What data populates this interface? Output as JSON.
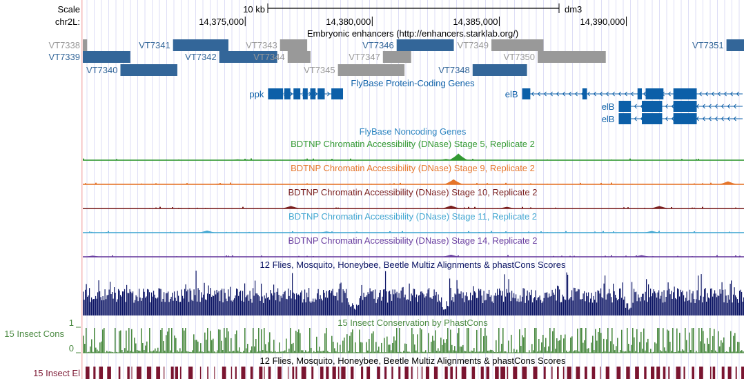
{
  "ruler": {
    "scale_label": "Scale",
    "scale_bar_label": "10 kb",
    "assembly": "dm3",
    "chrom_label": "chr2L:",
    "ticks": [
      {
        "label": "14,375,000",
        "value": 14375000
      },
      {
        "label": "14,380,000",
        "value": 14380000
      },
      {
        "label": "14,385,000",
        "value": 14385000
      },
      {
        "label": "14,390,000",
        "value": 14390000
      }
    ]
  },
  "view_range": [
    14368610,
    14394630
  ],
  "colors": {
    "enhancer_blue": "#336699",
    "enhancer_gray": "#999999",
    "gene": "#0C5FA8",
    "grid": "#c8c8f0",
    "scale_text": "#000000",
    "dnase_stage5": "#339933",
    "dnase_stage9": "#E5752A",
    "dnase_stage10": "#7A1F1F",
    "dnase_stage11": "#44A8D2",
    "dnase_stage14": "#6A3FA0",
    "multiz": "#0B1464",
    "phastcons": "#4C8B43",
    "elements": "#7A1530",
    "noncoding_title": "#2E86C1"
  },
  "tracks": {
    "enhancers_title": "Embryonic enhancers (http://enhancers.starklab.org/)",
    "protein_coding_title": "FlyBase Protein-Coding Genes",
    "noncoding_title": "FlyBase Noncoding Genes",
    "dnase_stage5_title": "BDTNP Chromatin Accessibility (DNase) Stage 5, Replicate 2",
    "dnase_stage9_title": "BDTNP Chromatin Accessibility (DNase) Stage 9, Replicate 2",
    "dnase_stage10_title": "BDTNP Chromatin Accessibility (DNase) Stage 10, Replicate 2",
    "dnase_stage11_title": "BDTNP Chromatin Accessibility (DNase) Stage 11, Replicate 2",
    "dnase_stage14_title": "BDTNP Chromatin Accessibility (DNase) Stage 14, Replicate 2",
    "multiz_title": "12 Flies, Mosquito, Honeybee, Beetle Multiz Alignments & phastCons Scores",
    "phastcons_title": "15 Insect Conservation by PhastCons",
    "phastcons_side_label": "15 Insect Cons",
    "phastcons_max": "1",
    "phastcons_min": "0",
    "elements_title": "12 Flies, Mosquito, Honeybee, Beetle Multiz Alignments & phastCons Scores",
    "elements_side_label": "15 Insect El"
  },
  "enhancers": [
    {
      "name": "VT7338",
      "start": 14368610,
      "end": 14368780,
      "row": 0,
      "color": "gray"
    },
    {
      "name": "VT7339",
      "start": 14368610,
      "end": 14370480,
      "row": 1,
      "color": "blue"
    },
    {
      "name": "VT7340",
      "start": 14370090,
      "end": 14372330,
      "row": 2,
      "color": "blue"
    },
    {
      "name": "VT7341",
      "start": 14372160,
      "end": 14374340,
      "row": 0,
      "color": "blue"
    },
    {
      "name": "VT7342",
      "start": 14373980,
      "end": 14376260,
      "row": 1,
      "color": "blue"
    },
    {
      "name": "VT7343",
      "start": 14376370,
      "end": 14377440,
      "row": 0,
      "color": "gray"
    },
    {
      "name": "VT7344",
      "start": 14376670,
      "end": 14377570,
      "row": 1,
      "color": "gray"
    },
    {
      "name": "VT7345",
      "start": 14378650,
      "end": 14381270,
      "row": 2,
      "color": "gray"
    },
    {
      "name": "VT7346",
      "start": 14380960,
      "end": 14383210,
      "row": 0,
      "color": "blue"
    },
    {
      "name": "VT7347",
      "start": 14380420,
      "end": 14381530,
      "row": 1,
      "color": "gray"
    },
    {
      "name": "VT7348",
      "start": 14383950,
      "end": 14386090,
      "row": 2,
      "color": "blue"
    },
    {
      "name": "VT7349",
      "start": 14384690,
      "end": 14386740,
      "row": 0,
      "color": "gray"
    },
    {
      "name": "VT7350",
      "start": 14386510,
      "end": 14389190,
      "row": 1,
      "color": "gray"
    },
    {
      "name": "VT7351",
      "start": 14393940,
      "end": 14394630,
      "row": 0,
      "color": "blue"
    }
  ],
  "genes": [
    {
      "name": "ppk",
      "start": 14375900,
      "end": 14378850,
      "row": 0,
      "label_side": "left",
      "exons": [
        [
          14375900,
          14376490
        ],
        [
          14376540,
          14376780
        ],
        [
          14376900,
          14377170
        ],
        [
          14377270,
          14377460
        ],
        [
          14377560,
          14377770
        ],
        [
          14377850,
          14378130
        ],
        [
          14378390,
          14378850
        ]
      ]
    },
    {
      "name": "elB",
      "start": 14385900,
      "end": 14394630,
      "row": 0,
      "label_side": "left",
      "exons": [
        [
          14385900,
          14386220
        ],
        [
          14388270,
          14388450
        ],
        [
          14390440,
          14390610
        ],
        [
          14390760,
          14391460
        ],
        [
          14391850,
          14392770
        ]
      ]
    },
    {
      "name": "elB",
      "start": 14389700,
      "end": 14394630,
      "row": 1,
      "label_side": "left",
      "exons": [
        [
          14389700,
          14390180
        ],
        [
          14390610,
          14391410
        ],
        [
          14391850,
          14392770
        ]
      ]
    },
    {
      "name": "elB",
      "start": 14389700,
      "end": 14394630,
      "row": 2,
      "label_side": "left",
      "exons": [
        [
          14389700,
          14390180
        ],
        [
          14390610,
          14391410
        ],
        [
          14391850,
          14392770
        ]
      ]
    }
  ],
  "dnase_peaks": {
    "stage5": [
      [
        14383390,
        0.8
      ],
      [
        14382900,
        0.15
      ],
      [
        14374700,
        0.1
      ]
    ],
    "stage9": [
      [
        14383200,
        0.6
      ],
      [
        14394000,
        0.35
      ],
      [
        14374000,
        0.1
      ]
    ],
    "stage10": [
      [
        14383100,
        0.35
      ],
      [
        14376800,
        0.3
      ],
      [
        14391300,
        0.3
      ],
      [
        14385300,
        0.2
      ]
    ],
    "stage11": [
      [
        14373500,
        0.25
      ],
      [
        14378200,
        0.15
      ],
      [
        14391000,
        0.2
      ]
    ],
    "stage14": [
      [
        14383100,
        0.25
      ],
      [
        14369000,
        0.15
      ],
      [
        14390600,
        0.2
      ]
    ]
  }
}
